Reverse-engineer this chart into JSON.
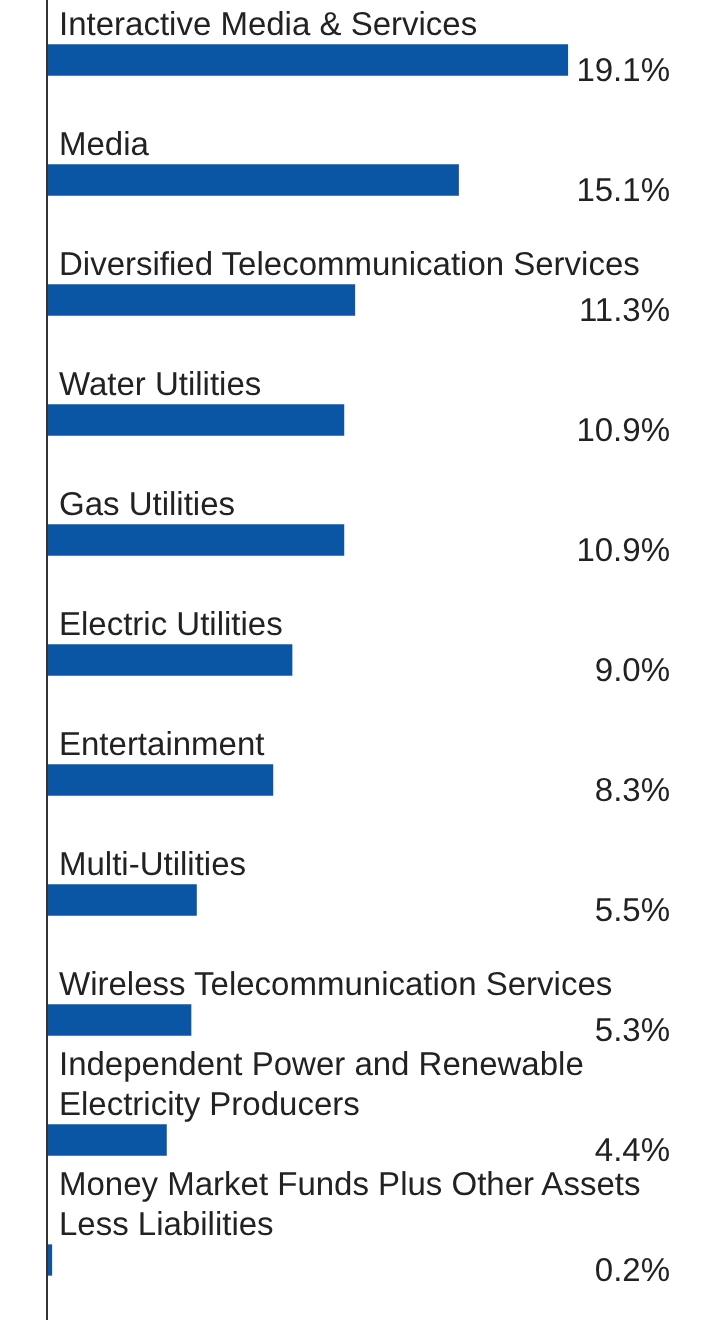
{
  "chart_data": {
    "type": "bar",
    "orientation": "horizontal",
    "categories": [
      "Interactive Media & Services",
      "Media",
      "Diversified Telecommunication Services",
      "Water Utilities",
      "Gas Utilities",
      "Electric Utilities",
      "Entertainment",
      "Multi-Utilities",
      "Wireless Telecommunication Services",
      "Independent Power and Renewable Electricity Producers",
      "Money Market Funds Plus Other Assets Less Liabilities"
    ],
    "values": [
      19.1,
      15.1,
      11.3,
      10.9,
      10.9,
      9.0,
      8.3,
      5.5,
      5.3,
      4.4,
      0.2
    ],
    "value_labels": [
      "19.1%",
      "15.1%",
      "11.3%",
      "10.9%",
      "10.9%",
      "9.0%",
      "8.3%",
      "5.5%",
      "5.3%",
      "4.4%",
      "0.2%"
    ],
    "color": "#0b56a4",
    "legend": false,
    "tick_labels": false
  }
}
